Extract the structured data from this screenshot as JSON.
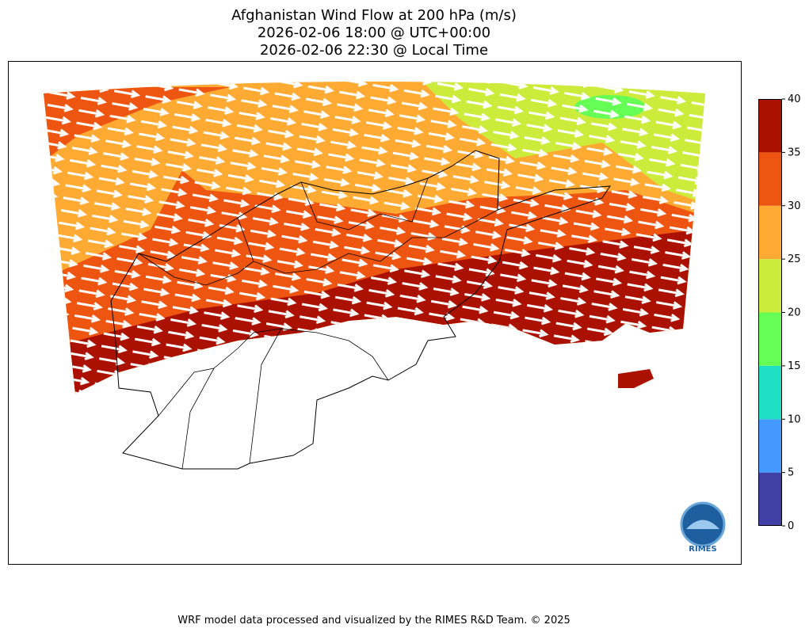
{
  "title": [
    "Afghanistan Wind Flow at 200 hPa (m/s)",
    "2026-02-06 18:00 @ UTC+00:00",
    "2026-02-06 22:30 @ Local Time"
  ],
  "colorbar": {
    "levels": [
      0,
      5,
      10,
      15,
      20,
      25,
      30,
      35,
      40
    ],
    "colors": [
      "#3f3fa6",
      "#4499ff",
      "#1ddfc4",
      "#66ff55",
      "#cdeb3a",
      "#ffaa33",
      "#ee5511",
      "#aa1100"
    ]
  },
  "logo": "RIMES",
  "footer": "WRF model data processed and visualized by the RIMES R&D Team. © 2025"
}
